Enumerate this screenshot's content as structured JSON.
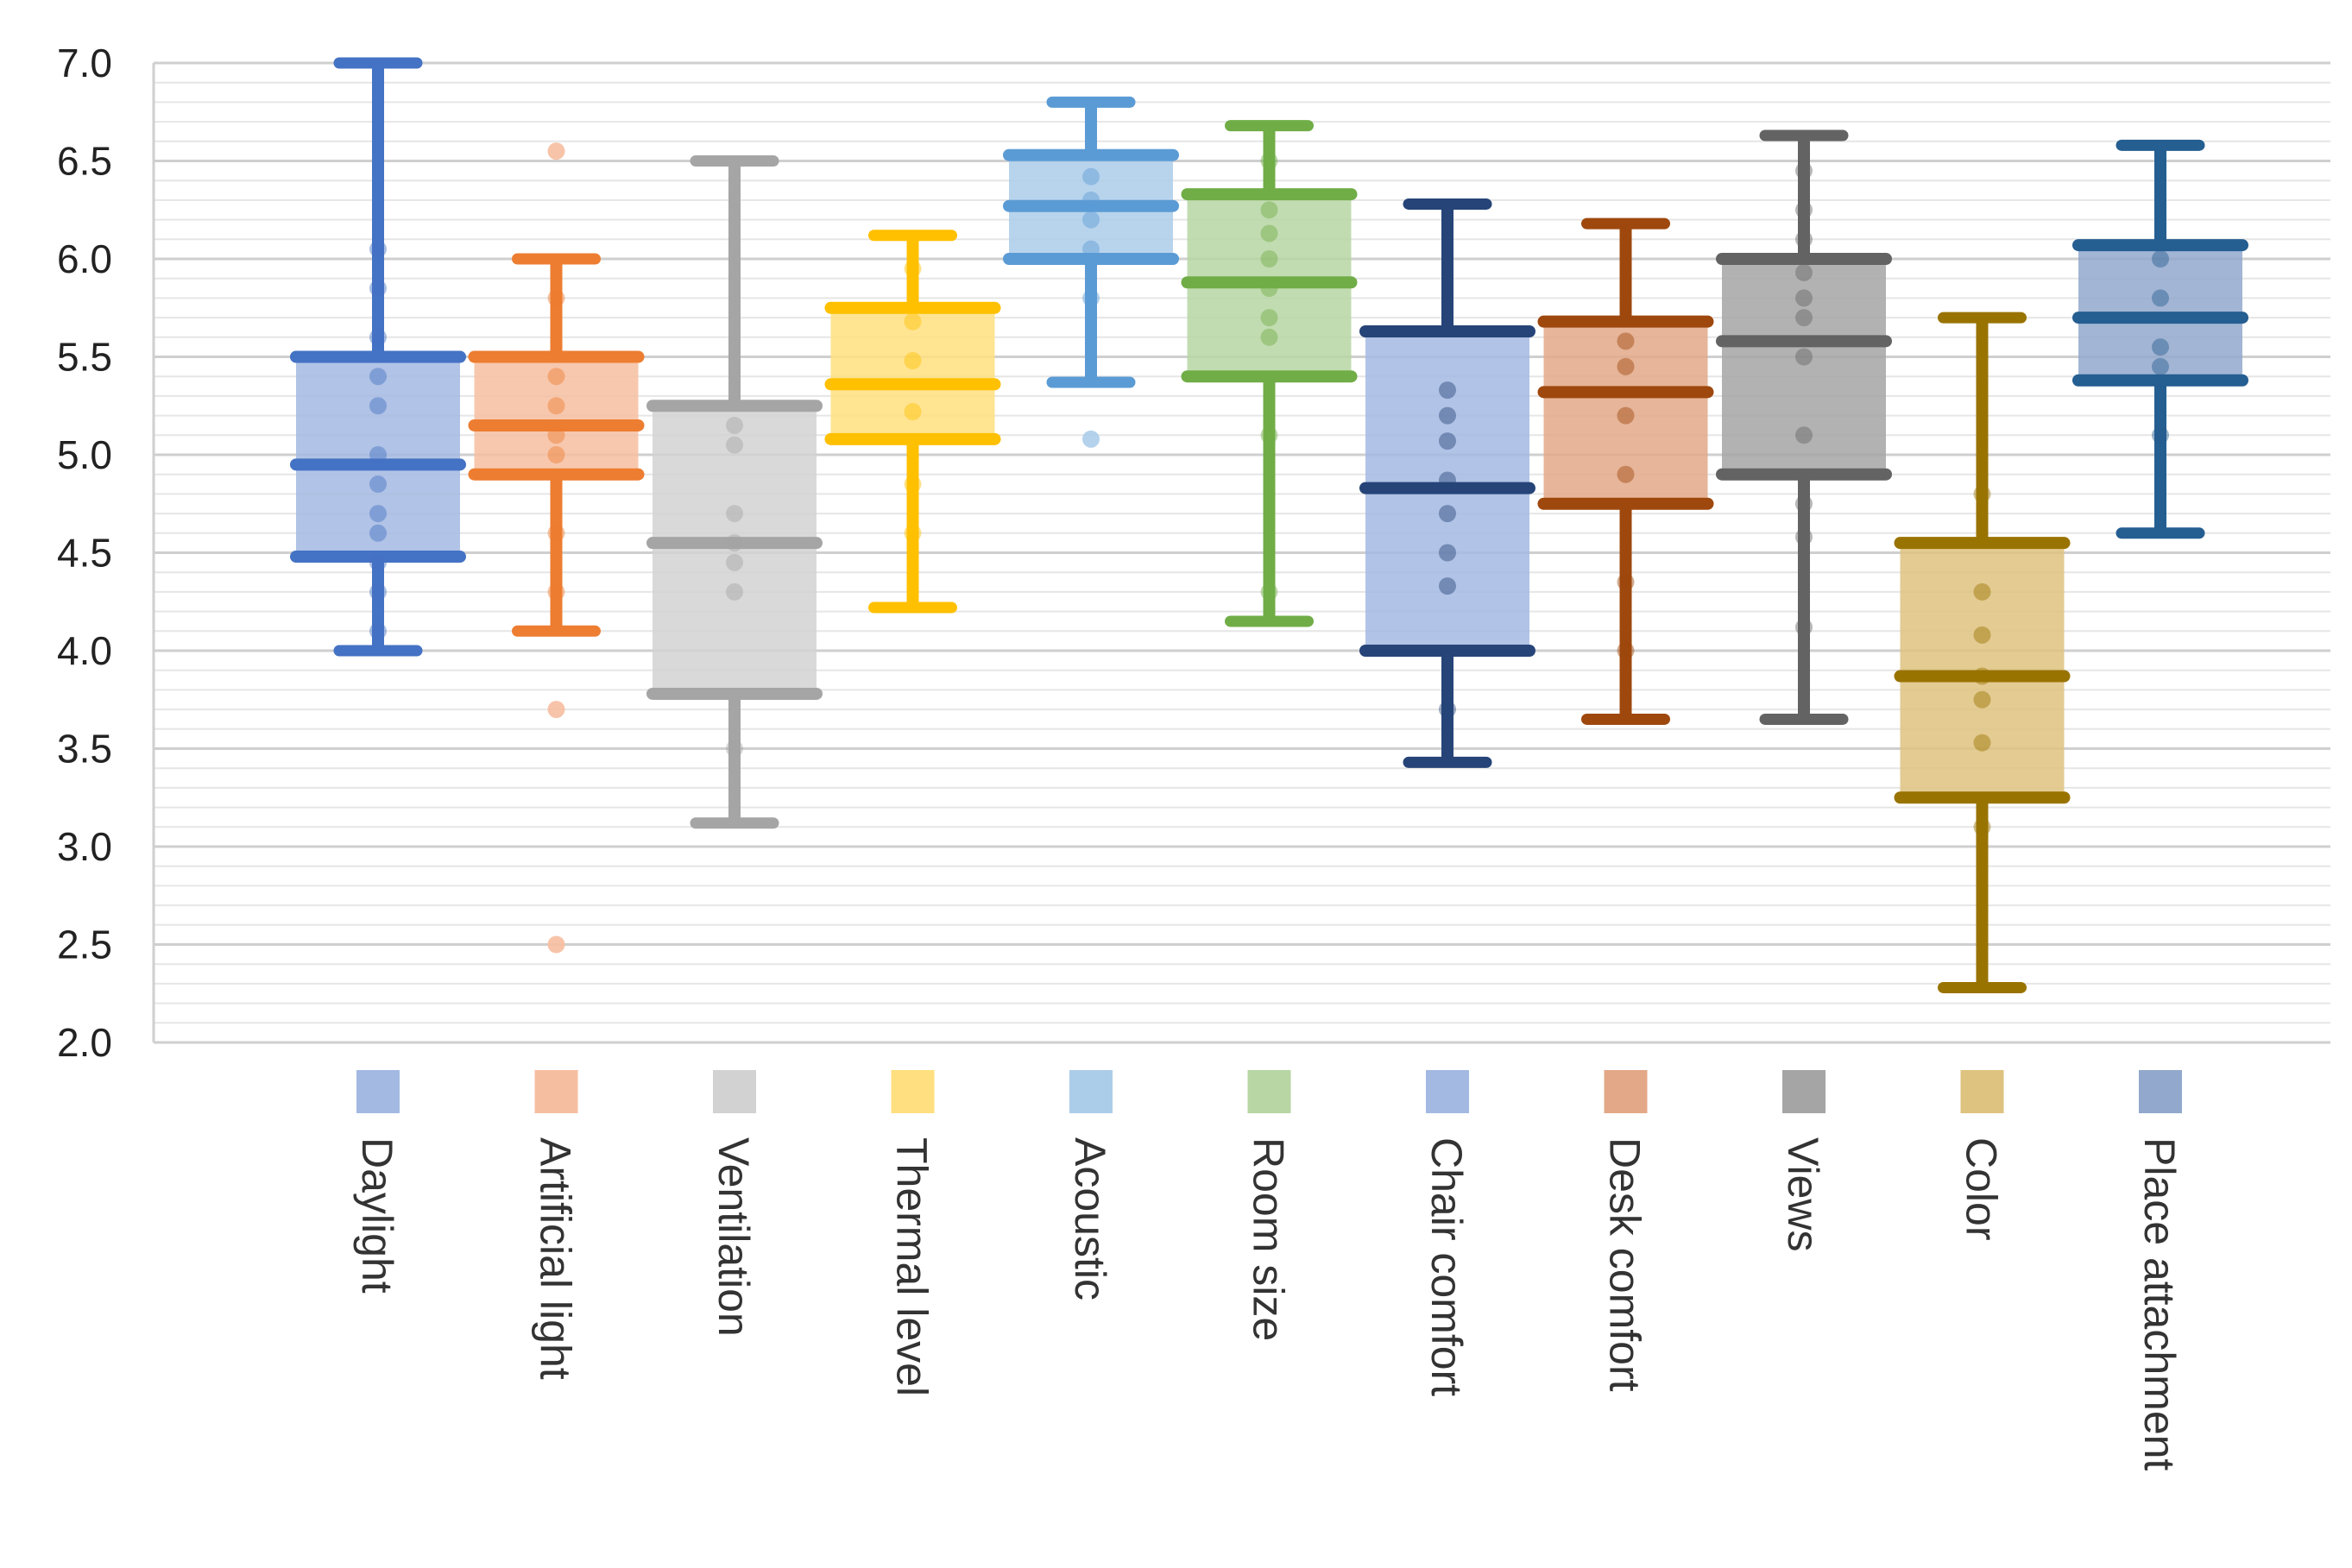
{
  "chart_data": {
    "type": "boxplot",
    "title": "",
    "xlabel": "",
    "ylabel": "",
    "ylim": [
      2.0,
      7.0
    ],
    "y_ticks": [
      "2.0",
      "2.5",
      "3.0",
      "3.5",
      "4.0",
      "4.5",
      "5.0",
      "5.5",
      "6.0",
      "6.5",
      "7.0"
    ],
    "grid": true,
    "legend": "bottom, vertical labels",
    "series": [
      {
        "name": "Daylight",
        "color": "#4472c4",
        "fill": "#a3b9e2",
        "min": 4.0,
        "q1": 4.48,
        "median": 4.95,
        "q3": 5.5,
        "max": 7.0,
        "points": [
          4.1,
          4.3,
          4.45,
          4.6,
          4.7,
          4.85,
          5.0,
          5.25,
          5.4,
          5.6,
          5.85,
          6.05
        ]
      },
      {
        "name": "Artificial light",
        "color": "#ed7d31",
        "fill": "#f6bea0",
        "min": 4.1,
        "q1": 4.9,
        "median": 5.15,
        "q3": 5.5,
        "max": 6.0,
        "points": [
          4.3,
          4.6,
          5.0,
          5.1,
          5.25,
          5.4,
          5.8
        ],
        "outliers": [
          6.55,
          3.7,
          2.5
        ]
      },
      {
        "name": "Ventilation",
        "color": "#a5a5a5",
        "fill": "#d2d2d2",
        "min": 3.12,
        "q1": 3.78,
        "median": 4.55,
        "q3": 5.25,
        "max": 6.5,
        "points": [
          3.5,
          4.3,
          4.45,
          4.55,
          4.7,
          5.05,
          5.15
        ]
      },
      {
        "name": "Thermal level",
        "color": "#ffc000",
        "fill": "#ffdf7f",
        "min": 4.22,
        "q1": 5.08,
        "median": 5.36,
        "q3": 5.75,
        "max": 6.12,
        "points": [
          4.6,
          4.85,
          5.22,
          5.48,
          5.68,
          5.95
        ]
      },
      {
        "name": "Acoustic",
        "color": "#5b9bd5",
        "fill": "#accdea",
        "min": 5.37,
        "q1": 6.0,
        "median": 6.27,
        "q3": 6.53,
        "max": 6.8,
        "points": [
          5.8,
          6.05,
          6.2,
          6.3,
          6.42
        ],
        "outliers": [
          5.08
        ]
      },
      {
        "name": "Room size",
        "color": "#70ad47",
        "fill": "#b7d6a3",
        "min": 4.15,
        "q1": 5.4,
        "median": 5.88,
        "q3": 6.33,
        "max": 6.68,
        "points": [
          4.3,
          5.1,
          5.6,
          5.7,
          5.85,
          6.0,
          6.13,
          6.25,
          6.5
        ]
      },
      {
        "name": "Chair comfort",
        "color": "#264478",
        "fill": "#a3b9e2",
        "min": 3.43,
        "q1": 4.0,
        "median": 4.83,
        "q3": 5.63,
        "max": 6.28,
        "points": [
          3.7,
          4.33,
          4.5,
          4.7,
          4.87,
          5.07,
          5.2,
          5.33
        ]
      },
      {
        "name": "Desk comfort",
        "color": "#9e480e",
        "fill": "#e3a887",
        "min": 3.65,
        "q1": 4.75,
        "median": 5.32,
        "q3": 5.68,
        "max": 6.18,
        "points": [
          4.0,
          4.35,
          4.9,
          5.2,
          5.45,
          5.58
        ]
      },
      {
        "name": "Views",
        "color": "#636363",
        "fill": "#a5a5a5",
        "min": 3.65,
        "q1": 4.9,
        "median": 5.58,
        "q3": 6.0,
        "max": 6.63,
        "points": [
          4.12,
          4.58,
          4.75,
          5.1,
          5.5,
          5.7,
          5.8,
          5.93,
          6.1,
          6.25,
          6.45
        ]
      },
      {
        "name": "Color",
        "color": "#997300",
        "fill": "#dec27f",
        "min": 2.28,
        "q1": 3.25,
        "median": 3.87,
        "q3": 4.55,
        "max": 5.7,
        "points": [
          3.1,
          3.53,
          3.75,
          3.87,
          4.08,
          4.3,
          4.8
        ]
      },
      {
        "name": "Place attachment",
        "color": "#255e91",
        "fill": "#92a8cc",
        "min": 4.6,
        "q1": 5.38,
        "median": 5.7,
        "q3": 6.07,
        "max": 6.58,
        "points": [
          5.1,
          5.45,
          5.55,
          5.8,
          6.0
        ]
      }
    ]
  }
}
